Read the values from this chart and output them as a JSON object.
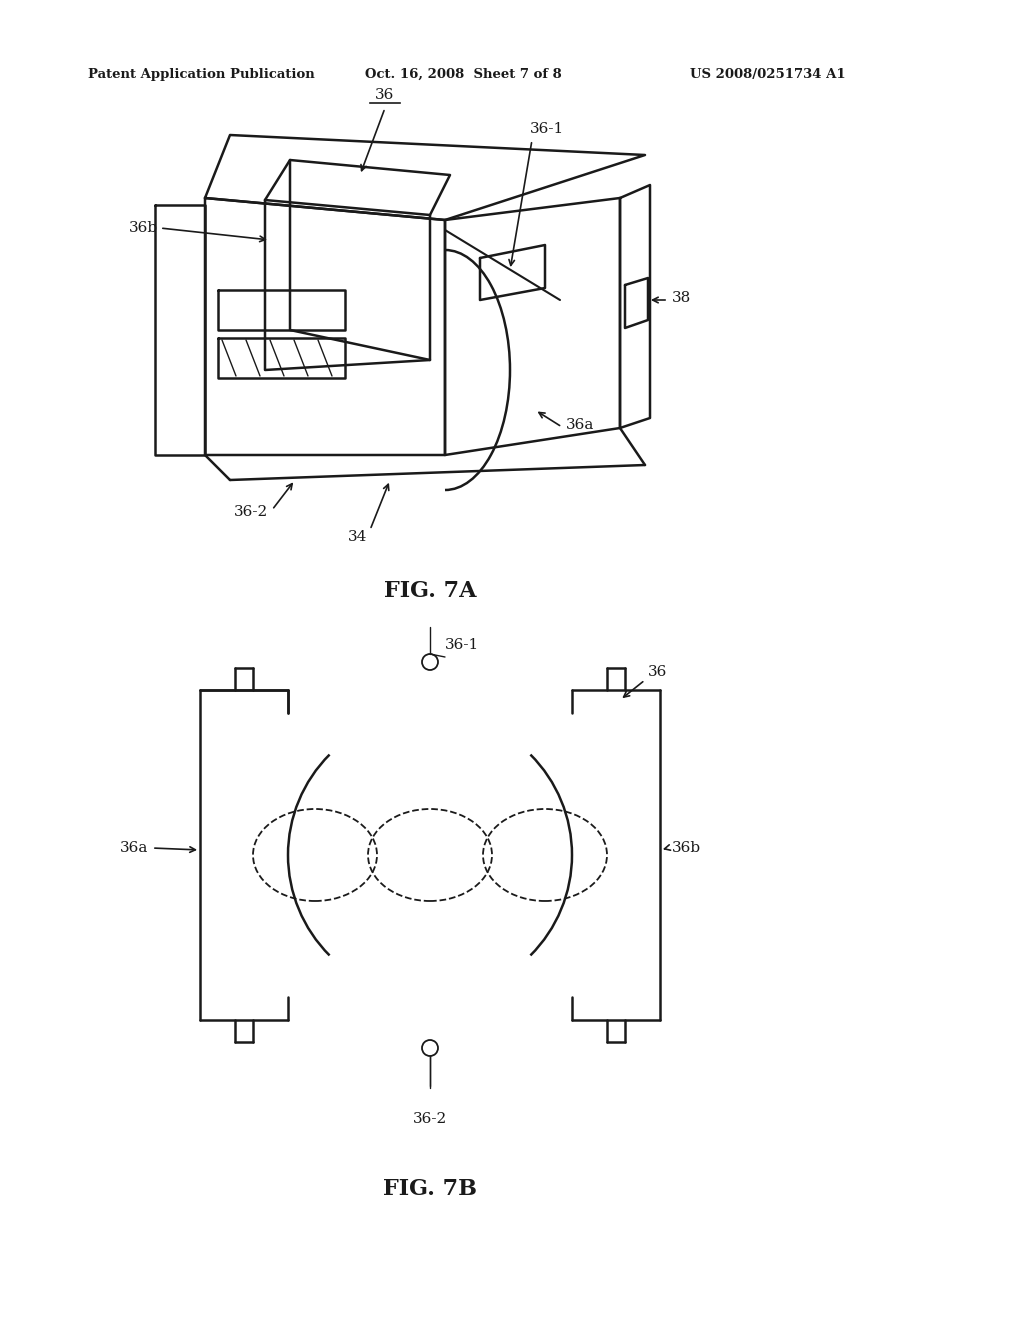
{
  "bg_color": "#ffffff",
  "line_color": "#1a1a1a",
  "header_left": "Patent Application Publication",
  "header_center": "Oct. 16, 2008  Sheet 7 of 8",
  "header_right": "US 2008/0251734 A1",
  "fig7a_label": "FIG. 7A",
  "fig7b_label": "FIG. 7B"
}
